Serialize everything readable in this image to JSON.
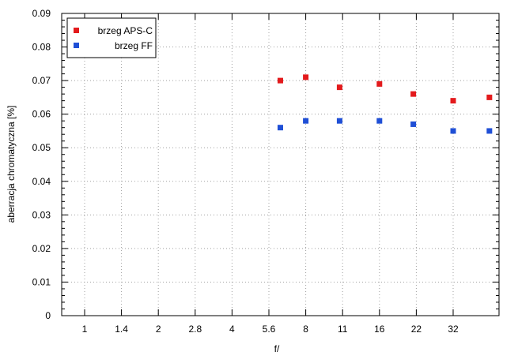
{
  "chart_data": {
    "type": "scatter",
    "title": "",
    "xlabel": "f/",
    "ylabel": "aberracja chromatyczna [%]",
    "x_scale": "log2",
    "x_ticks": [
      "1",
      "1.4",
      "2",
      "2.8",
      "4",
      "5.6",
      "8",
      "11",
      "16",
      "22",
      "32"
    ],
    "y_ticks": [
      "0",
      "0.01",
      "0.02",
      "0.03",
      "0.04",
      "0.05",
      "0.06",
      "0.07",
      "0.08",
      "0.09"
    ],
    "ylim": [
      0,
      0.09
    ],
    "grid": true,
    "legend_position": "top-left",
    "series": [
      {
        "name": "brzeg APS-C",
        "color": "#e31a1c",
        "x": [
          "6.3",
          "8",
          "11",
          "16",
          "22",
          "32",
          "45"
        ],
        "y": [
          0.07,
          0.071,
          0.068,
          0.069,
          0.066,
          0.064,
          0.065
        ]
      },
      {
        "name": "brzeg FF",
        "color": "#1f4fd6",
        "x": [
          "6.3",
          "8",
          "11",
          "16",
          "22",
          "32",
          "45"
        ],
        "y": [
          0.056,
          0.058,
          0.058,
          0.058,
          0.057,
          0.055,
          0.055
        ]
      }
    ]
  }
}
